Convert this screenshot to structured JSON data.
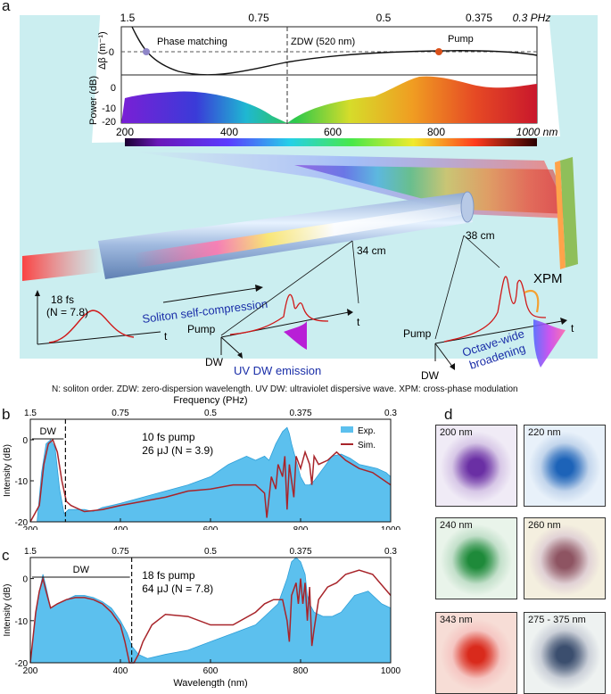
{
  "panel_labels": {
    "a": "a",
    "b": "b",
    "c": "c",
    "d": "d"
  },
  "panel_a": {
    "top_axis": {
      "ticks": [
        "1.5",
        "0.75",
        "0.5",
        "0.375",
        "0.3 PHz"
      ]
    },
    "dispersion": {
      "ylabel": "Δβ (m⁻¹)",
      "ytick": "0",
      "phase_matching": "Phase matching",
      "zdw": "ZDW (520 nm)",
      "pump": "Pump"
    },
    "power": {
      "ylabel": "Power (dB)",
      "yticks": [
        "0",
        "-10",
        "-20"
      ]
    },
    "bottom_axis": {
      "ticks": [
        "200",
        "400",
        "600",
        "800",
        "1000 nm"
      ]
    },
    "labels": {
      "pulse1_duration": "18 fs",
      "pulse1_order": "(N = 7.8)",
      "t1": "t",
      "soliton": "Soliton self-compression",
      "cm34": "34 cm",
      "cm38": "38 cm",
      "pump1": "Pump",
      "t2": "t",
      "dw1": "DW",
      "uv_emission": "UV DW emission",
      "xpm": "XPM",
      "pump2": "Pump",
      "t3": "t",
      "dw2": "DW",
      "octave1": "Octave-wide",
      "octave2": "broadening"
    }
  },
  "caption": "N: soliton order. ZDW: zero-dispersion wavelength. UV DW: ultraviolet dispersive wave. XPM: cross-phase modulation",
  "chart_data": [
    {
      "type": "area",
      "panel": "b",
      "title": "Frequency (PHz)",
      "xlabel": "",
      "ylabel": "Intensity (dB)",
      "xlim": [
        200,
        1000
      ],
      "ylim": [
        -20,
        5
      ],
      "xticks": [
        "200",
        "400",
        "600",
        "800",
        "1000"
      ],
      "yticks": [
        "0",
        "-10",
        "-20"
      ],
      "top_ticks": [
        "1.5",
        "0.75",
        "0.5",
        "0.375",
        "0.3"
      ],
      "annotation_dw": "DW",
      "annotation_line1": "10 fs pump",
      "annotation_line2": "26 μJ (N = 3.9)",
      "dashed_x": 278,
      "legend": [
        "Exp.",
        "Sim."
      ],
      "series": [
        {
          "name": "Exp.",
          "x": [
            200,
            215,
            225,
            235,
            245,
            255,
            265,
            275,
            285,
            300,
            320,
            340,
            360,
            380,
            400,
            450,
            500,
            550,
            600,
            640,
            660,
            680,
            700,
            720,
            730,
            745,
            760,
            770,
            775,
            780,
            790,
            800,
            810,
            820,
            830,
            850,
            870,
            890,
            910,
            930,
            950,
            970,
            990,
            1000
          ],
          "y": [
            -20,
            -20,
            -8,
            -1,
            0,
            -2,
            -12,
            -18,
            -17,
            -17,
            -17,
            -17.5,
            -16.5,
            -16,
            -15.5,
            -14,
            -12.5,
            -11,
            -9,
            -6,
            -5,
            -4,
            -5,
            -4,
            -5,
            -1,
            2,
            3,
            1.5,
            -1,
            -5,
            -9,
            -11,
            -11,
            -10,
            -7,
            -4,
            -3.5,
            -4.5,
            -6,
            -6.5,
            -7,
            -8,
            -9
          ]
        },
        {
          "name": "Sim.",
          "x": [
            200,
            220,
            230,
            240,
            250,
            260,
            270,
            280,
            290,
            300,
            320,
            360,
            400,
            450,
            500,
            550,
            600,
            650,
            700,
            720,
            725,
            735,
            745,
            750,
            760,
            765,
            770,
            775,
            785,
            790,
            800,
            810,
            820,
            825,
            830,
            840,
            860,
            880,
            900,
            930,
            960,
            1000
          ],
          "y": [
            -20,
            -16,
            -6,
            -1,
            0,
            -3,
            -10,
            -15,
            -16,
            -16.5,
            -17.5,
            -17,
            -16,
            -15,
            -14,
            -12.5,
            -12,
            -11,
            -11,
            -13,
            -19,
            -9,
            -12,
            -6,
            -9,
            -4,
            -17,
            -6,
            -14,
            -4,
            -7,
            -3,
            -6,
            -11,
            -4,
            -6,
            -5,
            -3,
            -5,
            -7,
            -8,
            -11
          ]
        }
      ]
    },
    {
      "type": "area",
      "panel": "c",
      "title": "",
      "xlabel": "Wavelength (nm)",
      "ylabel": "Intensity (dB)",
      "xlim": [
        200,
        1000
      ],
      "ylim": [
        -20,
        5
      ],
      "xticks": [
        "200",
        "400",
        "600",
        "800",
        "1000"
      ],
      "yticks": [
        "0",
        "-10",
        "-20"
      ],
      "top_ticks": [
        "1.5",
        "0.75",
        "0.5",
        "0.375",
        "0.3"
      ],
      "annotation_dw": "DW",
      "annotation_line1": "18 fs pump",
      "annotation_line2": "64 μJ (N = 7.8)",
      "dashed_x": 425,
      "series": [
        {
          "name": "Exp.",
          "x": [
            200,
            210,
            220,
            228,
            235,
            245,
            260,
            280,
            300,
            320,
            340,
            360,
            380,
            400,
            415,
            425,
            440,
            460,
            500,
            550,
            600,
            650,
            700,
            730,
            750,
            770,
            780,
            790,
            800,
            810,
            815,
            820,
            830,
            850,
            870,
            890,
            920,
            950,
            980,
            1000
          ],
          "y": [
            -20,
            -10,
            -3,
            1,
            -2,
            -7,
            -6,
            -5,
            -4,
            -4,
            -4.5,
            -5.5,
            -7,
            -10,
            -13,
            -16,
            -18,
            -19,
            -18,
            -17,
            -15,
            -13,
            -11,
            -8,
            -6,
            0,
            4,
            5,
            4,
            1,
            -4,
            -6,
            -8,
            -9,
            -9,
            -8,
            -4,
            -3,
            -6,
            -7
          ]
        },
        {
          "name": "Sim.",
          "x": [
            200,
            205,
            212,
            220,
            228,
            235,
            245,
            260,
            280,
            300,
            320,
            340,
            360,
            380,
            400,
            410,
            420,
            430,
            440,
            450,
            470,
            500,
            550,
            600,
            650,
            700,
            720,
            740,
            760,
            770,
            775,
            780,
            790,
            795,
            800,
            805,
            810,
            815,
            820,
            825,
            830,
            840,
            860,
            880,
            900,
            930,
            960,
            1000
          ],
          "y": [
            -20,
            -15,
            -8,
            -3,
            0,
            -3,
            -7,
            -6,
            -5,
            -4.5,
            -4.5,
            -5,
            -6,
            -8,
            -11,
            -15,
            -20,
            -20,
            -18,
            -15,
            -11,
            -8.5,
            -9,
            -11,
            -11,
            -8,
            -6,
            -5,
            -5,
            -10,
            -15,
            -4,
            -1,
            -6,
            0,
            -6,
            -1,
            -10,
            -2,
            -16,
            -12,
            -5,
            -2,
            -1,
            1,
            2,
            1,
            -4
          ]
        }
      ]
    }
  ],
  "panel_d": {
    "tiles": [
      {
        "label": "200 nm",
        "color": "#6a2fa4",
        "bg": "#f0ebf6"
      },
      {
        "label": "220 nm",
        "color": "#1d63b8",
        "bg": "#e8f1fa"
      },
      {
        "label": "240 nm",
        "color": "#1e8a3a",
        "bg": "#e9f4ea"
      },
      {
        "label": "260 nm",
        "color": "#8e5462",
        "bg": "#f4efdf"
      },
      {
        "label": "343 nm",
        "color": "#d92a1c",
        "bg": "#f7ddd6"
      },
      {
        "label": "275 - 375 nm",
        "color": "#3b4e6e",
        "bg": "#eef2f1"
      }
    ]
  },
  "colors": {
    "exp_fill": "#5cc0ee",
    "exp_stroke": "#2f9fd8",
    "sim_line": "#a8242a",
    "panel_bg": "#cbeef0"
  }
}
